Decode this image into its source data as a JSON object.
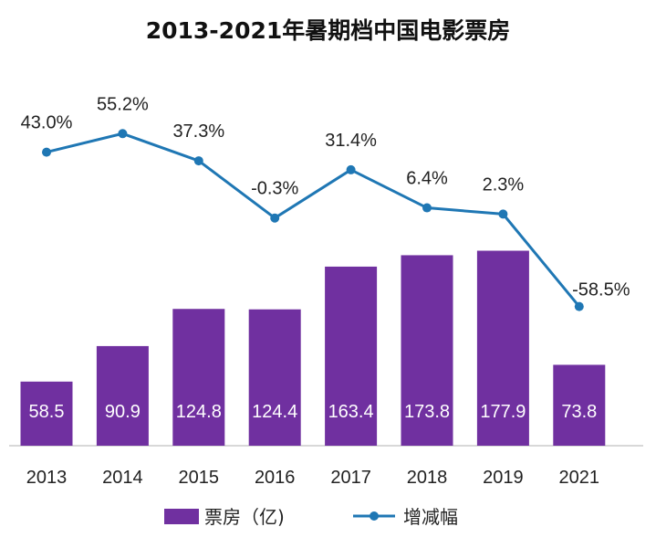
{
  "chart_data": {
    "type": "bar+line",
    "title": "2013-2021年暑期档中国电影票房",
    "categories": [
      "2013",
      "2014",
      "2015",
      "2016",
      "2017",
      "2018",
      "2019",
      "2021"
    ],
    "series": [
      {
        "name": "票房（亿)",
        "type": "bar",
        "values": [
          58.5,
          90.9,
          124.8,
          124.4,
          163.4,
          173.8,
          177.9,
          73.8
        ],
        "labels": [
          "58.5",
          "90.9",
          "124.8",
          "124.4",
          "163.4",
          "173.8",
          "177.9",
          "73.8"
        ],
        "ylim": [
          0,
          220
        ]
      },
      {
        "name": "增减幅",
        "type": "line",
        "values": [
          43.0,
          55.2,
          37.3,
          -0.3,
          31.4,
          6.4,
          2.3,
          -58.5
        ],
        "labels": [
          "43.0%",
          "55.2%",
          "37.3%",
          "-0.3%",
          "31.4%",
          "6.4%",
          "2.3%",
          "-58.5%"
        ],
        "unit": "%"
      }
    ],
    "legend_position": "bottom",
    "colors": {
      "bar": "#7030a0",
      "line": "#1f77b4",
      "axis": "#cccccc"
    }
  }
}
